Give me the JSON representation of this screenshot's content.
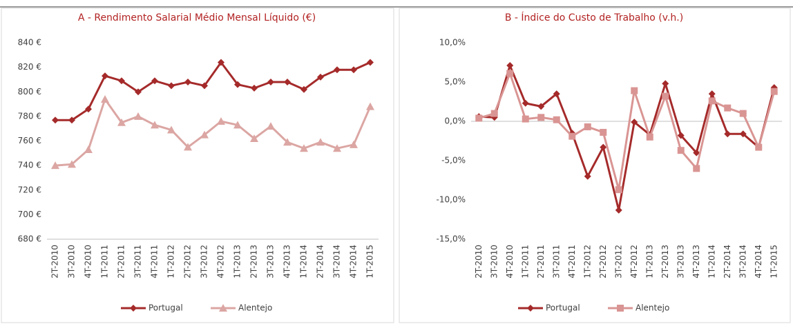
{
  "chart_data": [
    {
      "type": "line",
      "title": "A - Rendimento Salarial Médio Mensal Líquido (€)",
      "categories": [
        "2T-2010",
        "3T-2010",
        "4T-2010",
        "1T-2011",
        "2T-2011",
        "3T-2011",
        "4T-2011",
        "1T-2012",
        "2T-2012",
        "3T-2012",
        "4T-2012",
        "1T-2013",
        "2T-2013",
        "3T-2013",
        "4T-2013",
        "1T-2014",
        "2T-2014",
        "3T-2014",
        "4T-2014",
        "1T-2015"
      ],
      "series": [
        {
          "name": "Portugal",
          "color": "#a52a2a",
          "marker": "diamond",
          "values": [
            777,
            777,
            786,
            813,
            809,
            800,
            809,
            805,
            808,
            805,
            824,
            806,
            803,
            808,
            808,
            802,
            812,
            818,
            818,
            824
          ]
        },
        {
          "name": "Alentejo",
          "color": "#dba6a3",
          "marker": "triangle",
          "values": [
            740,
            741,
            753,
            794,
            775,
            780,
            773,
            769,
            755,
            765,
            776,
            773,
            762,
            772,
            759,
            754,
            759,
            754,
            757,
            788
          ]
        }
      ],
      "ylim": [
        680,
        840
      ],
      "yticks": [
        {
          "value": 680,
          "label": "680 €"
        },
        {
          "value": 700,
          "label": "700 €"
        },
        {
          "value": 720,
          "label": "720 €"
        },
        {
          "value": 740,
          "label": "740 €"
        },
        {
          "value": 760,
          "label": "760 €"
        },
        {
          "value": 780,
          "label": "780 €"
        },
        {
          "value": 800,
          "label": "800 €"
        },
        {
          "value": 820,
          "label": "820 €"
        },
        {
          "value": 840,
          "label": "840 €"
        }
      ],
      "grid": false,
      "legend": "bottom"
    },
    {
      "type": "line",
      "title": "B - Índice do Custo de Trabalho (v.h.)",
      "categories": [
        "2T-2010",
        "3T-2010",
        "4T-2010",
        "1T-2011",
        "2T-2011",
        "3T-2011",
        "4T-2011",
        "1T-2012",
        "2T-2012",
        "3T-2012",
        "4T-2012",
        "1T-2013",
        "2T-2013",
        "3T-2013",
        "4T-2013",
        "1T-2014",
        "2T-2014",
        "3T-2014",
        "4T-2014",
        "1T-2015"
      ],
      "series": [
        {
          "name": "Portugal",
          "color": "#a52a2a",
          "marker": "diamond",
          "values": [
            0.6,
            0.5,
            7.1,
            2.3,
            1.9,
            3.5,
            -1.5,
            -7.0,
            -3.3,
            -11.3,
            -0.1,
            -1.7,
            4.8,
            -1.8,
            -4.0,
            3.5,
            -1.6,
            -1.6,
            -3.3,
            4.3
          ]
        },
        {
          "name": "Alentejo",
          "color": "#d99593",
          "marker": "square",
          "values": [
            0.4,
            1.0,
            6.1,
            0.3,
            0.5,
            0.2,
            -1.9,
            -0.7,
            -1.4,
            -8.7,
            3.9,
            -2.0,
            3.2,
            -3.7,
            -6.0,
            2.6,
            1.7,
            1.0,
            -3.3,
            3.8
          ]
        }
      ],
      "ylim": [
        -15,
        10
      ],
      "yticks": [
        {
          "value": -15,
          "label": "-15,0%"
        },
        {
          "value": -10,
          "label": "-10,0%"
        },
        {
          "value": -5,
          "label": "-5,0%"
        },
        {
          "value": 0,
          "label": "0,0%"
        },
        {
          "value": 5,
          "label": "5,0%"
        },
        {
          "value": 10,
          "label": "10,0%"
        }
      ],
      "grid": false,
      "legend": "bottom"
    }
  ]
}
